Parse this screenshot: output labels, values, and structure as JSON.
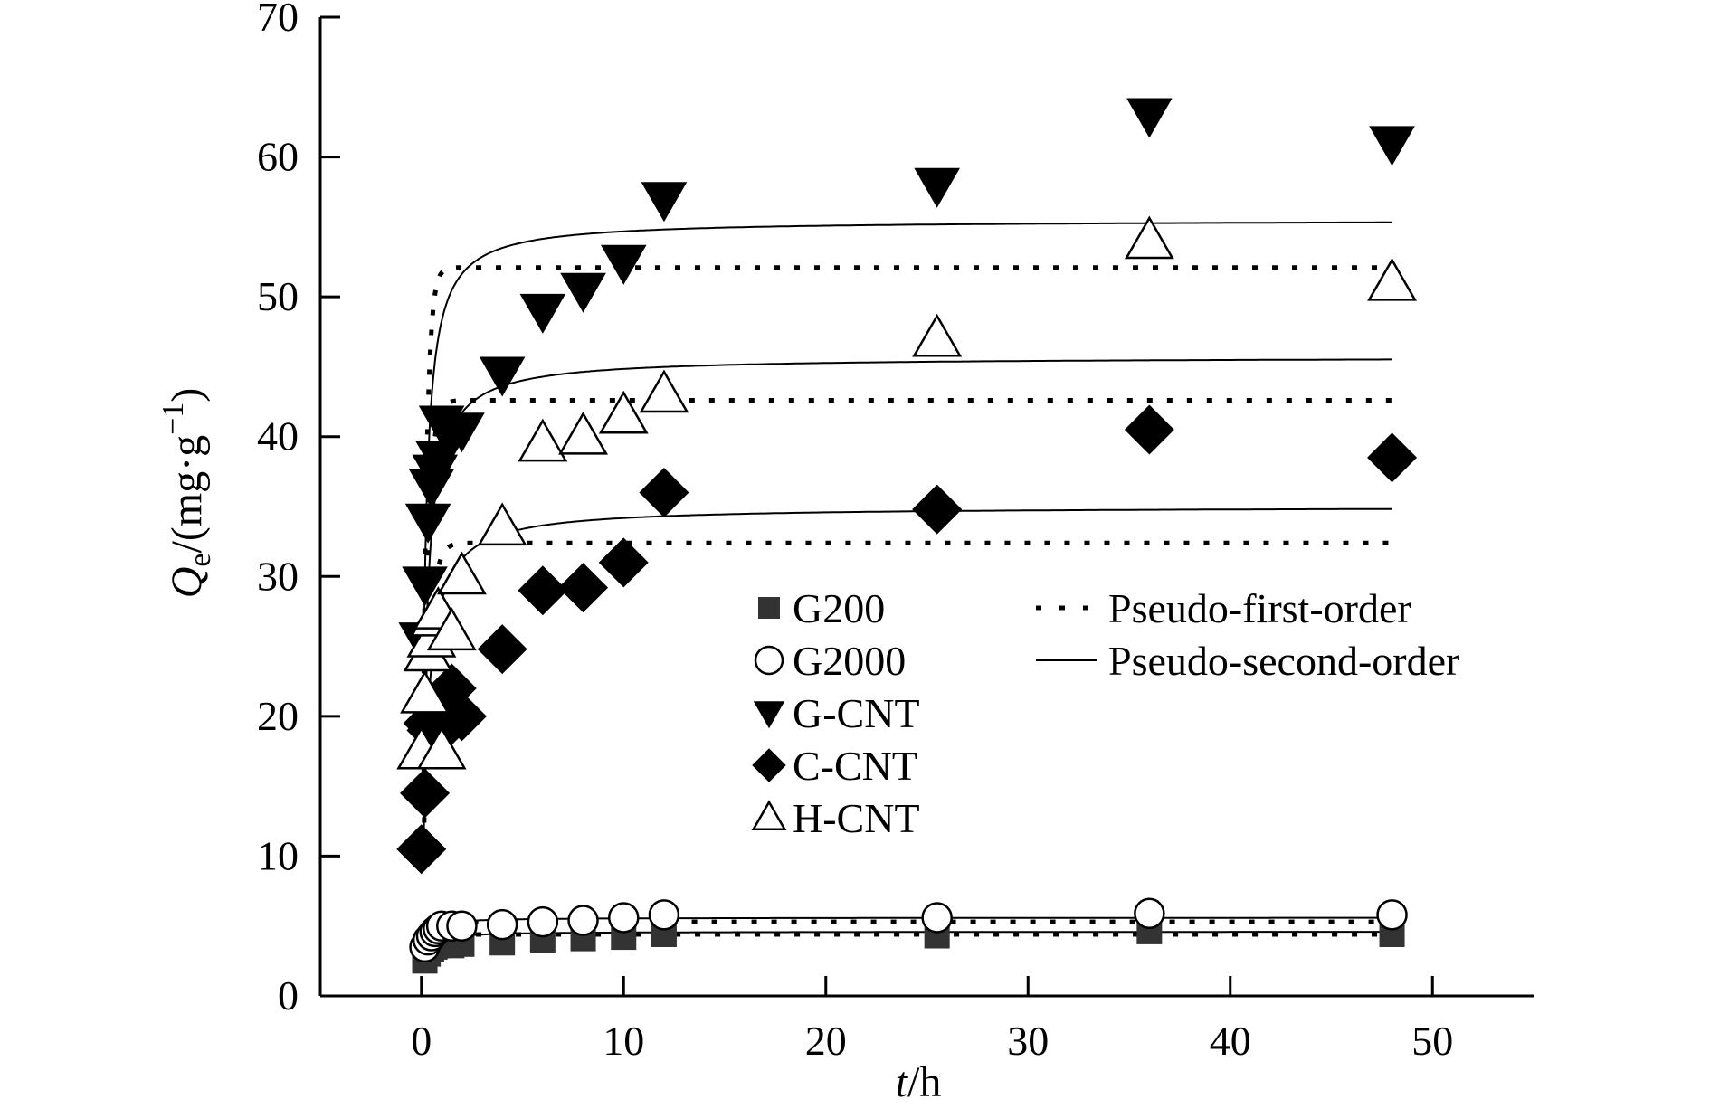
{
  "chart_data": {
    "type": "scatter",
    "xlabel": {
      "var": "t",
      "unit": "/h"
    },
    "ylabel": {
      "var": "Q",
      "sub": "e",
      "unit_open": "/(mg·g",
      "sup": "−1",
      "unit_close": ")"
    },
    "xlim": [
      -5,
      55
    ],
    "ylim": [
      0,
      70
    ],
    "xticks": [
      0,
      10,
      20,
      30,
      40,
      50
    ],
    "yticks": [
      0,
      10,
      20,
      30,
      40,
      50,
      60,
      70
    ],
    "grid": false,
    "legend_position": "center",
    "series": [
      {
        "name": "G200",
        "marker": "square-filled",
        "color": "#333333",
        "points": [
          [
            0.17,
            2.5
          ],
          [
            0.33,
            3.0
          ],
          [
            0.5,
            3.3
          ],
          [
            0.67,
            3.5
          ],
          [
            0.83,
            3.6
          ],
          [
            1,
            3.7
          ],
          [
            1.5,
            3.6
          ],
          [
            2,
            3.7
          ],
          [
            4,
            3.8
          ],
          [
            6,
            4.0
          ],
          [
            8,
            4.1
          ],
          [
            10,
            4.2
          ],
          [
            12,
            4.4
          ],
          [
            25.5,
            4.3
          ],
          [
            36,
            4.6
          ],
          [
            48,
            4.4
          ]
        ],
        "first_order_qe": 4.4,
        "second_order_qe": 4.6
      },
      {
        "name": "G2000",
        "marker": "circle-open",
        "color": "#000000",
        "points": [
          [
            0.17,
            3.5
          ],
          [
            0.33,
            4.0
          ],
          [
            0.5,
            4.3
          ],
          [
            0.67,
            4.6
          ],
          [
            0.83,
            4.8
          ],
          [
            1,
            5.0
          ],
          [
            1.5,
            5.0
          ],
          [
            2,
            5.0
          ],
          [
            4,
            5.1
          ],
          [
            6,
            5.3
          ],
          [
            8,
            5.4
          ],
          [
            10,
            5.6
          ],
          [
            12,
            5.8
          ],
          [
            25.5,
            5.6
          ],
          [
            36,
            5.9
          ],
          [
            48,
            5.8
          ]
        ],
        "first_order_qe": 5.3,
        "second_order_qe": 5.6
      },
      {
        "name": "G-CNT",
        "marker": "triangle-down-filled",
        "color": "#000000",
        "points": [
          [
            0,
            25.5
          ],
          [
            0.17,
            29.5
          ],
          [
            0.33,
            34.0
          ],
          [
            0.5,
            36.5
          ],
          [
            0.67,
            37.5
          ],
          [
            0.83,
            38.5
          ],
          [
            1,
            41.0
          ],
          [
            1.5,
            40.0
          ],
          [
            2,
            40.5
          ],
          [
            4,
            44.5
          ],
          [
            6,
            49.0
          ],
          [
            8,
            50.5
          ],
          [
            10,
            52.5
          ],
          [
            12,
            57.0
          ],
          [
            25.5,
            58.0
          ],
          [
            36,
            63.0
          ],
          [
            48,
            61.0
          ]
        ],
        "first_order_qe": 52.1,
        "second_order_qe": 55.5
      },
      {
        "name": "C-CNT",
        "marker": "diamond-filled",
        "color": "#000000",
        "points": [
          [
            0,
            10.5
          ],
          [
            0.17,
            14.5
          ],
          [
            0.33,
            19.5
          ],
          [
            0.5,
            19.0
          ],
          [
            0.67,
            20.0
          ],
          [
            0.83,
            20.0
          ],
          [
            1,
            19.0
          ],
          [
            1.5,
            22.0
          ],
          [
            2,
            20.0
          ],
          [
            4,
            24.8
          ],
          [
            6,
            29.0
          ],
          [
            8,
            29.2
          ],
          [
            10,
            31.0
          ],
          [
            12,
            36.0
          ],
          [
            25.5,
            34.8
          ],
          [
            36,
            40.5
          ],
          [
            48,
            38.5
          ]
        ],
        "first_order_qe": 32.4,
        "second_order_qe": 35.0
      },
      {
        "name": "H-CNT",
        "marker": "triangle-up-open",
        "color": "#000000",
        "points": [
          [
            0,
            17.5
          ],
          [
            0.17,
            21.5
          ],
          [
            0.33,
            24.5
          ],
          [
            0.5,
            25.5
          ],
          [
            0.67,
            27.0
          ],
          [
            0.83,
            27.5
          ],
          [
            1,
            17.5
          ],
          [
            1.5,
            26.0
          ],
          [
            2,
            30.0
          ],
          [
            4,
            33.5
          ],
          [
            6,
            39.5
          ],
          [
            8,
            40.0
          ],
          [
            10,
            41.5
          ],
          [
            12,
            43.0
          ],
          [
            25.5,
            47.0
          ],
          [
            36,
            54.0
          ],
          [
            48,
            51.0
          ]
        ],
        "first_order_qe": 42.6,
        "second_order_qe": 45.7
      }
    ],
    "fit_legend": [
      {
        "name": "Pseudo-first-order",
        "style": "dotted"
      },
      {
        "name": "Pseudo-second-order",
        "style": "solid"
      }
    ]
  }
}
